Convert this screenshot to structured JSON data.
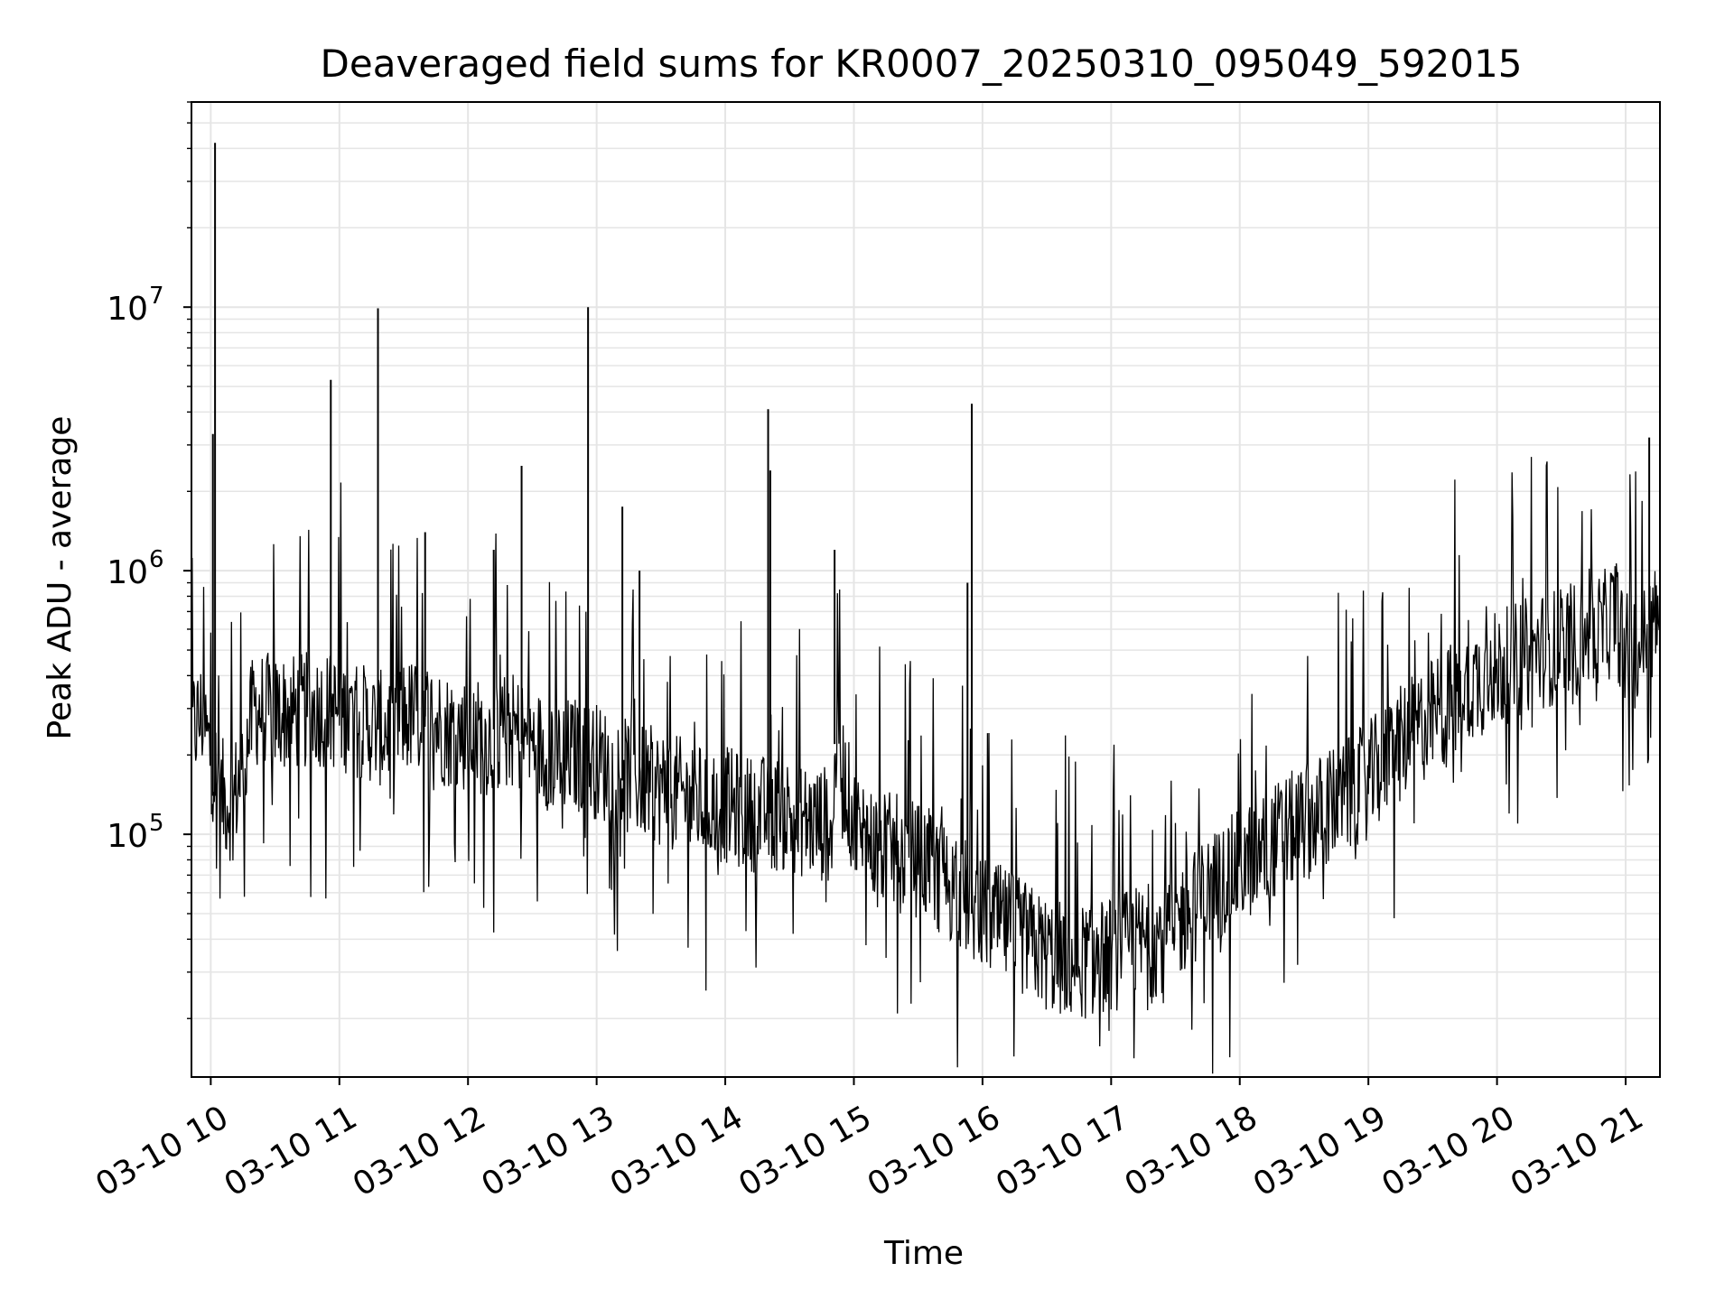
{
  "chart_data": {
    "type": "line",
    "title": "Deaveraged field sums for KR0007_20250310_095049_592015",
    "xlabel": "Time",
    "ylabel": "Peak ADU - average",
    "xscale": "time",
    "yscale": "log",
    "xlim": [
      "2025-03-10 09:51",
      "2025-03-10 21:16"
    ],
    "ylim": [
      12000,
      60000000
    ],
    "grid": true,
    "line_color": "#000000",
    "grid_color": "#e5e5e5",
    "x_ticks": [
      "2025-03-10 10:00",
      "2025-03-10 11:00",
      "2025-03-10 12:00",
      "2025-03-10 13:00",
      "2025-03-10 14:00",
      "2025-03-10 15:00",
      "2025-03-10 16:00",
      "2025-03-10 17:00",
      "2025-03-10 18:00",
      "2025-03-10 19:00",
      "2025-03-10 20:00",
      "2025-03-10 21:00"
    ],
    "x_tick_labels": [
      "03-10 10",
      "03-10 11",
      "03-10 12",
      "03-10 13",
      "03-10 14",
      "03-10 15",
      "03-10 16",
      "03-10 17",
      "03-10 18",
      "03-10 19",
      "03-10 20",
      "03-10 21"
    ],
    "y_major_ticks": [
      100000,
      1000000,
      10000000
    ],
    "y_tick_labels": [
      {
        "base": "10",
        "exp": "5"
      },
      {
        "base": "10",
        "exp": "6"
      },
      {
        "base": "10",
        "exp": "7"
      }
    ],
    "series": [
      {
        "points": [
          [
            "2025-03-10 09:51",
            250000
          ],
          [
            "2025-03-10 09:56",
            280000
          ],
          [
            "2025-03-10 10:00",
            200000
          ],
          [
            "2025-03-10 10:05",
            140000
          ],
          [
            "2025-03-10 10:10",
            130000
          ],
          [
            "2025-03-10 10:15",
            180000
          ],
          [
            "2025-03-10 10:20",
            300000
          ],
          [
            "2025-03-10 10:30",
            290000
          ],
          [
            "2025-03-10 10:40",
            290000
          ],
          [
            "2025-03-10 10:50",
            300000
          ],
          [
            "2025-03-10 11:00",
            290000
          ],
          [
            "2025-03-10 11:10",
            270000
          ],
          [
            "2025-03-10 11:20",
            250000
          ],
          [
            "2025-03-10 11:30",
            280000
          ],
          [
            "2025-03-10 11:40",
            280000
          ],
          [
            "2025-03-10 11:50",
            250000
          ],
          [
            "2025-03-10 12:00",
            240000
          ],
          [
            "2025-03-10 12:10",
            230000
          ],
          [
            "2025-03-10 12:20",
            250000
          ],
          [
            "2025-03-10 12:30",
            220000
          ],
          [
            "2025-03-10 12:40",
            200000
          ],
          [
            "2025-03-10 12:50",
            200000
          ],
          [
            "2025-03-10 13:00",
            190000
          ],
          [
            "2025-03-10 13:10",
            170000
          ],
          [
            "2025-03-10 13:20",
            160000
          ],
          [
            "2025-03-10 13:30",
            150000
          ],
          [
            "2025-03-10 13:40",
            140000
          ],
          [
            "2025-03-10 13:50",
            130000
          ],
          [
            "2025-03-10 14:00",
            130000
          ],
          [
            "2025-03-10 14:10",
            120000
          ],
          [
            "2025-03-10 14:20",
            120000
          ],
          [
            "2025-03-10 14:30",
            120000
          ],
          [
            "2025-03-10 14:40",
            110000
          ],
          [
            "2025-03-10 14:50",
            110000
          ],
          [
            "2025-03-10 14:52",
            220000
          ],
          [
            "2025-03-10 15:00",
            110000
          ],
          [
            "2025-03-10 15:10",
            90000
          ],
          [
            "2025-03-10 15:20",
            85000
          ],
          [
            "2025-03-10 15:30",
            80000
          ],
          [
            "2025-03-10 15:40",
            70000
          ],
          [
            "2025-03-10 15:50",
            60000
          ],
          [
            "2025-03-10 16:00",
            50000
          ],
          [
            "2025-03-10 16:10",
            45000
          ],
          [
            "2025-03-10 16:20",
            40000
          ],
          [
            "2025-03-10 16:30",
            35000
          ],
          [
            "2025-03-10 16:40",
            33000
          ],
          [
            "2025-03-10 16:50",
            33000
          ],
          [
            "2025-03-10 17:00",
            35000
          ],
          [
            "2025-03-10 17:10",
            38000
          ],
          [
            "2025-03-10 17:20",
            40000
          ],
          [
            "2025-03-10 17:30",
            45000
          ],
          [
            "2025-03-10 17:40",
            55000
          ],
          [
            "2025-03-10 17:50",
            65000
          ],
          [
            "2025-03-10 18:00",
            75000
          ],
          [
            "2025-03-10 18:10",
            85000
          ],
          [
            "2025-03-10 18:20",
            100000
          ],
          [
            "2025-03-10 18:30",
            110000
          ],
          [
            "2025-03-10 18:40",
            125000
          ],
          [
            "2025-03-10 18:50",
            140000
          ],
          [
            "2025-03-10 19:00",
            160000
          ],
          [
            "2025-03-10 19:10",
            200000
          ],
          [
            "2025-03-10 19:20",
            240000
          ],
          [
            "2025-03-10 19:30",
            280000
          ],
          [
            "2025-03-10 19:40",
            330000
          ],
          [
            "2025-03-10 19:50",
            380000
          ],
          [
            "2025-03-10 20:00",
            420000
          ],
          [
            "2025-03-10 20:10",
            460000
          ],
          [
            "2025-03-10 20:20",
            500000
          ],
          [
            "2025-03-10 20:30",
            520000
          ],
          [
            "2025-03-10 20:40",
            560000
          ],
          [
            "2025-03-10 20:50",
            600000
          ],
          [
            "2025-03-10 20:55",
            700000
          ],
          [
            "2025-03-10 21:00",
            500000
          ],
          [
            "2025-03-10 21:05",
            500000
          ],
          [
            "2025-03-10 21:10",
            600000
          ],
          [
            "2025-03-10 21:16",
            650000
          ]
        ]
      }
    ],
    "spikes": [
      [
        "2025-03-10 10:02",
        42000000
      ],
      [
        "2025-03-10 10:01",
        3300000
      ],
      [
        "2025-03-10 10:56",
        5300000
      ],
      [
        "2025-03-10 11:18",
        9900000
      ],
      [
        "2025-03-10 11:40",
        1400000
      ],
      [
        "2025-03-10 12:12",
        1200000
      ],
      [
        "2025-03-10 12:25",
        2500000
      ],
      [
        "2025-03-10 12:56",
        10000000
      ],
      [
        "2025-03-10 13:12",
        1750000
      ],
      [
        "2025-03-10 13:20",
        1000000
      ],
      [
        "2025-03-10 14:20",
        4100000
      ],
      [
        "2025-03-10 14:21",
        2400000
      ],
      [
        "2025-03-10 14:51",
        1200000
      ],
      [
        "2025-03-10 15:55",
        4300000
      ],
      [
        "2025-03-10 15:53",
        900000
      ],
      [
        "2025-03-10 21:11",
        3200000
      ]
    ]
  }
}
